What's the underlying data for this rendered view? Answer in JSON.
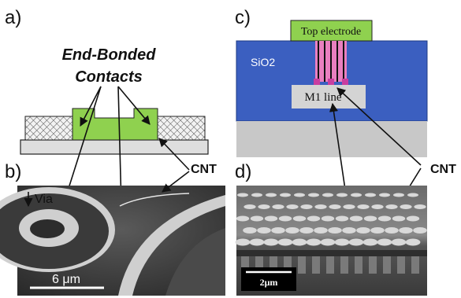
{
  "panels": {
    "a": {
      "label": "a)",
      "title_line1": "End-Bonded",
      "title_line2": "Contacts"
    },
    "b": {
      "label": "b)",
      "via_label": "Via",
      "scale_bar": "6 μm"
    },
    "c": {
      "label": "c)",
      "top_electrode": "Top electrode",
      "oxide": "SiO2",
      "m1_line": "M1 line"
    },
    "d": {
      "label": "d)",
      "scale_bar": "2μm"
    }
  },
  "callouts": {
    "cnt_b": "CNT",
    "cnt_cd": "CNT"
  },
  "colors": {
    "green": "#8fd14f",
    "oxide_blue": "#3b5fc0",
    "gray_substrate": "#c8c8c8",
    "pink": "#e97fc0",
    "dark_text": "#111111"
  }
}
